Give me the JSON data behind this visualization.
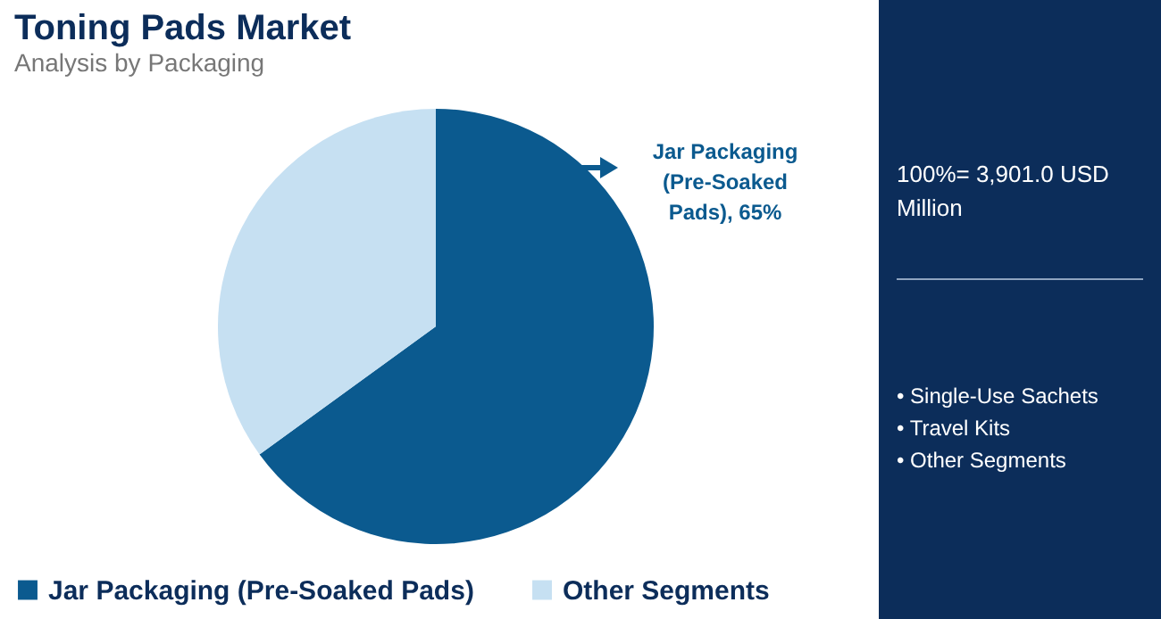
{
  "chart_data": {
    "type": "pie",
    "title": "Toning Pads Market",
    "subtitle": "Analysis by Packaging",
    "categories": [
      "Jar Packaging (Pre-Soaked Pads)",
      "Other Segments"
    ],
    "values": [
      65,
      35
    ],
    "colors": [
      "#0b5a8f",
      "#c6e0f2"
    ],
    "legend": "bottom",
    "annotations": [
      "Jar Packaging (Pre-Soaked Pads), 65%",
      "100%= 3,901.0 USD Million",
      "• Single-Use Sachets",
      "• Travel Kits",
      "• Other Segments"
    ]
  }
}
